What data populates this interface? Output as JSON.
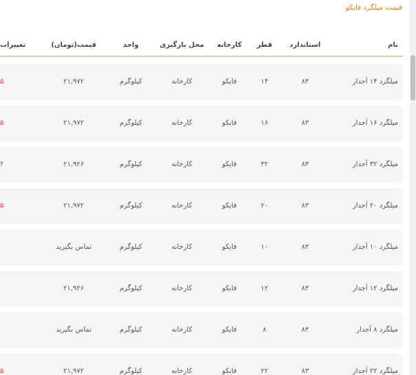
{
  "title": "قیمت میلگرد فایکو",
  "table": {
    "headers": [
      "نام",
      "استاندارد",
      "قطر",
      "کارخانه",
      "محل بارگیری",
      "واحد",
      "قیمت(تومان)",
      "تغییرات"
    ],
    "rows": [
      {
        "cells": [
          "میلگرد ۱۴ آجدار",
          "۸۳",
          "۱۴",
          "فایکو",
          "کارخانه",
          "کیلوگرم",
          "۲۱,۹۷۲"
        ],
        "change": {
          "text": "۵",
          "color": "#e53935"
        }
      },
      {
        "cells": [
          "میلگرد ۱۶ آجدار",
          "۸۳",
          "۱۶",
          "فایکو",
          "کارخانه",
          "کیلوگرم",
          "۲۱,۹۷۲"
        ],
        "change": {
          "text": "۵",
          "color": "#e53935"
        }
      },
      {
        "cells": [
          "میلگرد ۳۲ آجدار",
          "۸۳",
          "۳۲",
          "فایکو",
          "کارخانه",
          "کیلوگرم",
          "۲۱,۹۲۶"
        ],
        "change": {
          "text": "۴",
          "color": "#2e9e4f"
        }
      },
      {
        "cells": [
          "میلگرد ۲۰ آجدار",
          "۸۳",
          "۲۰",
          "فایکو",
          "کارخانه",
          "کیلوگرم",
          "۲۱,۹۷۲"
        ],
        "change": {
          "text": "۵",
          "color": "#e53935"
        }
      },
      {
        "cells": [
          "میلگرد ۱۰ آجدار",
          "۸۳",
          "۱۰",
          "فایکو",
          "کارخانه",
          "کیلوگرم",
          "تماس بگیرید"
        ]
      },
      {
        "cells": [
          "میلگرد ۱۲ آجدار",
          "۸۳",
          "۱۲",
          "فایکو",
          "کارخانه",
          "کیلوگرم",
          "۲۱,۹۲۶"
        ]
      },
      {
        "cells": [
          "میلگرد ۸ آجدار",
          "۸۳",
          "۸",
          "فایکو",
          "کارخانه",
          "کیلوگرم",
          "تماس بگیرید"
        ]
      },
      {
        "cells": [
          "میلگرد ۲۲ آجدار",
          "۸۳",
          "۲۲",
          "فایکو",
          "کارخانه",
          "کیلوگرم",
          "۲۱,۹۷۲"
        ],
        "change": {
          "text": "۵",
          "color": "#e53935"
        }
      }
    ]
  }
}
